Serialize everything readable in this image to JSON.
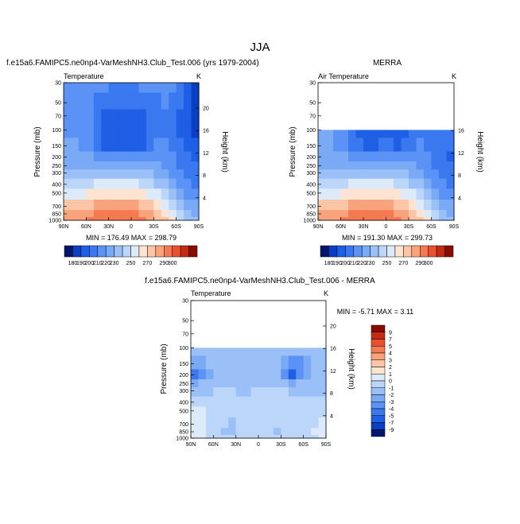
{
  "figure_title": "JJA",
  "chart_data": [
    {
      "type": "contour",
      "title": "f.e15a6.FAMIPC5.ne0np4-VarMeshNH3.Club_Test.006 (yrs 1979-2004)",
      "left_label": "Temperature",
      "right_label": "K",
      "ylabel": "Pressure (mb)",
      "y2label": "Height (km)",
      "x_ticks": [
        "90N",
        "60N",
        "30N",
        "0",
        "30S",
        "60S",
        "90S"
      ],
      "y_ticks": [
        "30",
        "50",
        "70",
        "100",
        "150",
        "200",
        "250",
        "300",
        "400",
        "500",
        "700",
        "850",
        "1000"
      ],
      "y2_ticks": [
        "20",
        "16",
        "12",
        "8",
        "4"
      ],
      "y2_values": [
        20,
        16,
        12,
        8,
        4
      ],
      "stats": "MIN = 176.49  MAX = 298.79",
      "min": 176.49,
      "max": 298.79,
      "top_pressure": 30,
      "lat_centers": [
        85,
        75,
        65,
        55,
        45,
        35,
        25,
        15,
        5,
        -5,
        -15,
        -25,
        -35,
        -45,
        -55,
        -65,
        -75,
        -85
      ],
      "pressure_levels": [
        30,
        50,
        70,
        100,
        150,
        200,
        250,
        300,
        400,
        500,
        700,
        850,
        1000
      ],
      "values": [
        [
          218,
          218,
          218,
          216,
          212,
          210,
          208,
          208,
          208,
          208,
          210,
          212,
          214,
          214,
          210,
          202,
          192,
          184
        ],
        [
          218,
          218,
          216,
          214,
          206,
          200,
          200,
          200,
          200,
          200,
          200,
          204,
          208,
          210,
          208,
          200,
          190,
          182
        ],
        [
          218,
          218,
          216,
          212,
          204,
          198,
          198,
          198,
          198,
          198,
          198,
          202,
          206,
          208,
          206,
          198,
          190,
          182
        ],
        [
          218,
          218,
          216,
          212,
          204,
          196,
          194,
          194,
          194,
          194,
          196,
          200,
          206,
          208,
          206,
          198,
          192,
          186
        ],
        [
          220,
          220,
          218,
          214,
          206,
          198,
          196,
          196,
          196,
          196,
          198,
          202,
          210,
          212,
          208,
          202,
          196,
          192
        ],
        [
          222,
          222,
          222,
          220,
          216,
          212,
          210,
          210,
          210,
          210,
          212,
          214,
          218,
          216,
          212,
          206,
          200,
          196
        ],
        [
          226,
          226,
          226,
          226,
          226,
          224,
          222,
          222,
          222,
          222,
          222,
          222,
          222,
          218,
          214,
          208,
          204,
          200
        ],
        [
          232,
          232,
          232,
          232,
          232,
          232,
          232,
          232,
          232,
          232,
          232,
          230,
          226,
          222,
          216,
          210,
          206,
          202
        ],
        [
          248,
          248,
          248,
          248,
          250,
          250,
          250,
          250,
          250,
          250,
          248,
          244,
          238,
          232,
          222,
          214,
          210,
          206
        ],
        [
          258,
          258,
          258,
          260,
          262,
          264,
          266,
          266,
          266,
          266,
          264,
          258,
          250,
          242,
          232,
          222,
          216,
          212
        ],
        [
          272,
          272,
          274,
          276,
          280,
          282,
          284,
          284,
          284,
          282,
          278,
          272,
          264,
          254,
          244,
          232,
          226,
          220
        ],
        [
          280,
          280,
          284,
          286,
          290,
          292,
          294,
          294,
          294,
          292,
          288,
          280,
          272,
          264,
          254,
          240,
          232,
          226
        ],
        [
          286,
          286,
          288,
          292,
          294,
          296,
          298,
          298,
          298,
          296,
          292,
          286,
          278,
          270,
          260,
          246,
          238,
          232
        ]
      ]
    },
    {
      "type": "contour",
      "title": "MERRA",
      "left_label": "Air Temperature",
      "right_label": "K",
      "ylabel": "Pressure (mb)",
      "y2label": "Height (km)",
      "x_ticks": [
        "90N",
        "60N",
        "30N",
        "0",
        "30S",
        "60S",
        "90S"
      ],
      "y_ticks": [
        "30",
        "50",
        "70",
        "100",
        "150",
        "200",
        "250",
        "300",
        "400",
        "500",
        "700",
        "850",
        "1000"
      ],
      "y2_ticks": [
        "16",
        "12",
        "8",
        "4"
      ],
      "y2_values": [
        16,
        12,
        8,
        4
      ],
      "stats": "MIN = 191.30  MAX = 299.73",
      "min": 191.3,
      "max": 299.73,
      "top_pressure": 100,
      "lat_centers": [
        85,
        75,
        65,
        55,
        45,
        35,
        25,
        15,
        5,
        -5,
        -15,
        -25,
        -35,
        -45,
        -55,
        -65,
        -75,
        -85
      ],
      "pressure_levels": [
        100,
        150,
        200,
        250,
        300,
        400,
        500,
        700,
        850,
        1000
      ],
      "values": [
        [
          220,
          220,
          218,
          214,
          206,
          196,
          194,
          194,
          196,
          196,
          194,
          196,
          202,
          208,
          206,
          204,
          204,
          204
        ],
        [
          220,
          220,
          218,
          214,
          208,
          200,
          198,
          198,
          200,
          200,
          198,
          200,
          206,
          210,
          206,
          202,
          200,
          200
        ],
        [
          222,
          222,
          222,
          220,
          216,
          212,
          210,
          210,
          210,
          210,
          212,
          214,
          218,
          216,
          212,
          206,
          200,
          196
        ],
        [
          226,
          226,
          226,
          226,
          224,
          222,
          222,
          222,
          222,
          222,
          222,
          222,
          222,
          218,
          214,
          208,
          204,
          200
        ],
        [
          232,
          232,
          232,
          232,
          232,
          232,
          232,
          232,
          232,
          232,
          232,
          230,
          226,
          222,
          216,
          210,
          206,
          202
        ],
        [
          248,
          248,
          248,
          248,
          250,
          250,
          250,
          250,
          250,
          250,
          248,
          244,
          238,
          232,
          222,
          214,
          210,
          206
        ],
        [
          258,
          258,
          258,
          260,
          262,
          264,
          266,
          266,
          266,
          266,
          264,
          258,
          250,
          242,
          232,
          222,
          216,
          212
        ],
        [
          272,
          272,
          274,
          276,
          280,
          282,
          284,
          284,
          284,
          282,
          278,
          272,
          264,
          254,
          244,
          232,
          226,
          220
        ],
        [
          280,
          280,
          284,
          286,
          290,
          292,
          294,
          294,
          294,
          292,
          288,
          280,
          272,
          264,
          254,
          240,
          232,
          226
        ],
        [
          286,
          286,
          288,
          292,
          294,
          296,
          298,
          298,
          298,
          296,
          292,
          286,
          278,
          270,
          260,
          246,
          238,
          232
        ]
      ]
    },
    {
      "type": "contour",
      "title": "f.e15a6.FAMIPC5.ne0np4-VarMeshNH3.Club_Test.006 - MERRA",
      "left_label": "Temperature",
      "right_label": "K",
      "ylabel": "Pressure (mb)",
      "y2label": "Height (km)",
      "x_ticks": [
        "90N",
        "60N",
        "30N",
        "0",
        "30S",
        "60S",
        "90S"
      ],
      "y_ticks": [
        "30",
        "50",
        "70",
        "100",
        "150",
        "200",
        "250",
        "300",
        "400",
        "500",
        "700",
        "850",
        "1000"
      ],
      "y2_ticks": [
        "20",
        "16",
        "12",
        "8",
        "4"
      ],
      "y2_values": [
        20,
        16,
        12,
        8,
        4
      ],
      "stats": "MIN = -5.71  MAX =  3.11",
      "min": -5.71,
      "max": 3.11,
      "top_pressure": 100,
      "lat_centers": [
        85,
        75,
        65,
        55,
        45,
        35,
        25,
        15,
        5,
        -5,
        -15,
        -25,
        -35,
        -45,
        -55,
        -65,
        -75,
        -85
      ],
      "pressure_levels": [
        100,
        150,
        200,
        250,
        300,
        400,
        500,
        700,
        850,
        1000
      ],
      "values": [
        [
          -2,
          -2,
          -1.5,
          -1.5,
          -1.5,
          -1.5,
          -1.5,
          -1.5,
          -2,
          -2,
          -1.5,
          -1.5,
          -1.5,
          -2,
          -2,
          -2,
          -1.5,
          -1.5
        ],
        [
          -3,
          -2.5,
          -2,
          -1.5,
          -1.5,
          -1.5,
          -1.5,
          -1.5,
          -1.5,
          -2,
          -2,
          -2,
          -3,
          -4,
          -3.5,
          -2.5,
          -1.5,
          -1.5
        ],
        [
          -4.5,
          -3.5,
          -2.5,
          -1.5,
          -1.5,
          -1.5,
          -1.5,
          -1.5,
          -1.5,
          -2,
          -1.5,
          -2,
          -4,
          -5.5,
          -4,
          -2.5,
          -1.5,
          -1.5
        ],
        [
          -3,
          -2,
          -1.5,
          -1.5,
          -1.5,
          -1.5,
          -1.5,
          -1.5,
          -1.5,
          -1.5,
          -1.5,
          -1.5,
          -2,
          -2.5,
          -2,
          -1.5,
          -1.5,
          -1.5
        ],
        [
          -1.5,
          -1.5,
          -1.5,
          -0.5,
          -0.5,
          -0.5,
          -1.5,
          -1.5,
          -0.5,
          -0.5,
          -0.5,
          -0.5,
          -0.5,
          -1.5,
          -1.5,
          -1.5,
          -1.5,
          -1.5
        ],
        [
          -0.5,
          -0.5,
          -0.5,
          -0.5,
          -0.5,
          -0.5,
          -0.5,
          -0.5,
          -0.5,
          -0.5,
          -0.5,
          -0.5,
          -0.5,
          -0.5,
          -0.5,
          -0.5,
          -0.5,
          -0.5
        ],
        [
          0.5,
          0.5,
          -0.5,
          -0.5,
          -0.5,
          -0.5,
          -0.5,
          -0.5,
          -0.5,
          -0.5,
          -0.5,
          -0.5,
          -0.5,
          -0.5,
          -0.5,
          -0.5,
          -0.5,
          -0.5
        ],
        [
          0.5,
          0.5,
          -0.5,
          -0.5,
          -0.5,
          -1.5,
          -0.5,
          -0.5,
          -0.5,
          -0.5,
          -0.5,
          -0.5,
          -0.5,
          -0.5,
          -0.5,
          -0.5,
          -0.5,
          0.5
        ],
        [
          0.5,
          0.5,
          -0.5,
          -0.5,
          -1.5,
          -1.5,
          -0.5,
          -0.5,
          -0.5,
          -0.5,
          -0.5,
          -1.5,
          -0.5,
          -0.5,
          -0.5,
          -0.5,
          0.5,
          0.5
        ],
        [
          0.5,
          0.5,
          -0.5,
          -0.5,
          -0.5,
          -0.5,
          -0.5,
          -0.5,
          -0.5,
          -0.5,
          -0.5,
          -0.5,
          -0.5,
          -0.5,
          -0.5,
          -0.5,
          -0.5,
          0.5
        ]
      ]
    }
  ],
  "temp_colorbar": {
    "labels": [
      "180",
      "190",
      "200",
      "210",
      "220",
      "230",
      "250",
      "270",
      "290",
      "300"
    ],
    "levels": [
      180,
      190,
      200,
      210,
      220,
      230,
      240,
      250,
      260,
      270,
      280,
      290,
      300
    ],
    "colors": [
      "#04156e",
      "#0a3fc4",
      "#1f5fe6",
      "#3a78f0",
      "#5a92f5",
      "#7aaaf5",
      "#9ac0f7",
      "#bcd6f9",
      "#dceaf9",
      "#fde3d2",
      "#fbc5a6",
      "#f8a37c",
      "#f47a52",
      "#e8502e",
      "#c52a14",
      "#8a0b02"
    ]
  },
  "diff_colorbar": {
    "labels": [
      "9",
      "7",
      "5",
      "4",
      "3",
      "2",
      "1",
      "0",
      "-1",
      "-2",
      "-3",
      "-4",
      "-5",
      "-7",
      "-9"
    ],
    "levels": [
      -9,
      -7,
      -5,
      -4,
      -3,
      -2,
      -1,
      0,
      1,
      2,
      3,
      4,
      5,
      7,
      9
    ],
    "colors": [
      "#04156e",
      "#0a3fc4",
      "#1f5fe6",
      "#3a78f0",
      "#5a92f5",
      "#7aaaf5",
      "#9ac0f7",
      "#bcd6f9",
      "#dceaf9",
      "#fde3d2",
      "#fbc5a6",
      "#f8a37c",
      "#f47a52",
      "#e8502e",
      "#c52a14",
      "#8a0b02"
    ]
  }
}
